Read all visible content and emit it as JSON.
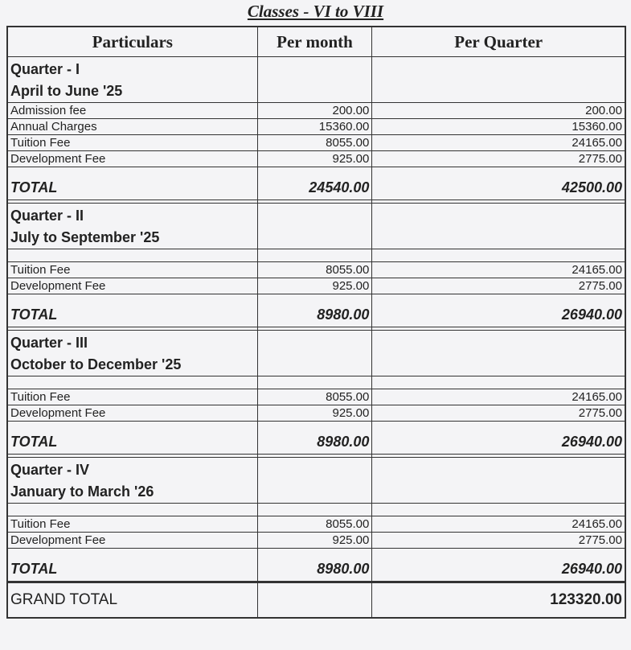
{
  "title": "Classes - VI to VIII",
  "headers": [
    "Particulars",
    "Per month",
    "Per Quarter"
  ],
  "quarters": [
    {
      "name": "Quarter - I",
      "period": "April to June '25",
      "blank_row": false,
      "items": [
        {
          "label": "Admission fee",
          "per_month": "200.00",
          "per_quarter": "200.00"
        },
        {
          "label": "Annual Charges",
          "per_month": "15360.00",
          "per_quarter": "15360.00"
        },
        {
          "label": "Tuition Fee",
          "per_month": "8055.00",
          "per_quarter": "24165.00"
        },
        {
          "label": "Development Fee",
          "per_month": "925.00",
          "per_quarter": "2775.00"
        }
      ],
      "total_label": "TOTAL",
      "total_month": "24540.00",
      "total_quarter": "42500.00"
    },
    {
      "name": "Quarter - II",
      "period": "July to September '25",
      "blank_row": true,
      "items": [
        {
          "label": "Tuition Fee",
          "per_month": "8055.00",
          "per_quarter": "24165.00"
        },
        {
          "label": "Development Fee",
          "per_month": "925.00",
          "per_quarter": "2775.00"
        }
      ],
      "total_label": "TOTAL",
      "total_month": "8980.00",
      "total_quarter": "26940.00"
    },
    {
      "name": "Quarter - III",
      "period": "October to December '25",
      "blank_row": true,
      "items": [
        {
          "label": "Tuition Fee",
          "per_month": "8055.00",
          "per_quarter": "24165.00"
        },
        {
          "label": "Development Fee",
          "per_month": "925.00",
          "per_quarter": "2775.00"
        }
      ],
      "total_label": "TOTAL",
      "total_month": "8980.00",
      "total_quarter": "26940.00"
    },
    {
      "name": "Quarter - IV",
      "period": "January to March '26",
      "blank_row": true,
      "items": [
        {
          "label": "Tuition Fee",
          "per_month": "8055.00",
          "per_quarter": "24165.00"
        },
        {
          "label": "Development Fee",
          "per_month": "925.00",
          "per_quarter": "2775.00"
        }
      ],
      "total_label": "TOTAL",
      "total_month": "8980.00",
      "total_quarter": "26940.00"
    }
  ],
  "grand_total": {
    "label": "GRAND TOTAL",
    "value": "123320.00"
  }
}
